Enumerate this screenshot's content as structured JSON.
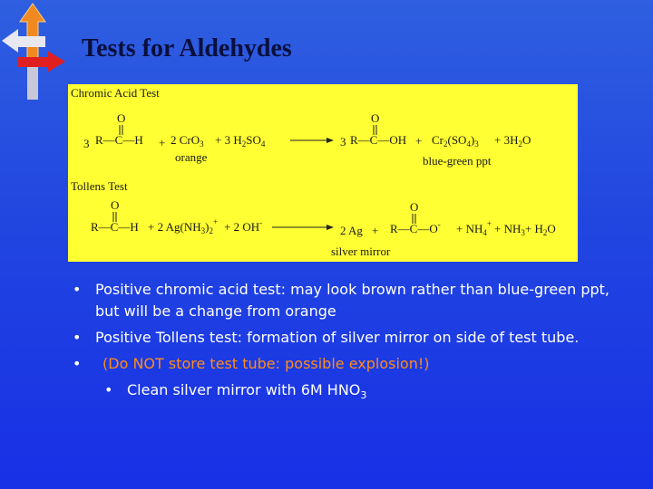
{
  "title": "Tests for Aldehydes",
  "box": {
    "chromic": {
      "label": "Chromic Acid Test",
      "parts": [
        "3",
        "R—C—H",
        "O",
        "+",
        "2 CrO",
        "3",
        "+ 3 H",
        "2",
        "SO",
        "4",
        "3",
        "R—C—OH",
        "O",
        "+",
        "Cr",
        "2",
        "(SO",
        "4",
        ")",
        "3",
        "+ 3H",
        "2",
        "O"
      ],
      "notes": [
        "orange",
        "blue-green ppt"
      ]
    },
    "tollens": {
      "label": "Tollens Test",
      "parts": [
        "R—C—H",
        "O",
        "+ 2 Ag(NH",
        "3",
        ")",
        "2",
        "+",
        "+ 2 OH",
        "-",
        "2 Ag",
        "+",
        "R—C—O",
        "-",
        "O",
        "+ NH",
        "4",
        "+",
        "+ NH",
        "3",
        "+ H",
        "2",
        "O"
      ],
      "notes": [
        "silver mirror"
      ]
    }
  },
  "bullets": [
    "Positive chromic acid test:  may look brown rather than blue-green ppt, but will be a change from orange",
    "Positive Tollens test:  formation of silver mirror on side of test tube.",
    "(Do NOT store test tube:  possible explosion!)"
  ],
  "sub_bullet": {
    "text": "Clean silver mirror with 6M HNO",
    "sub": "3"
  }
}
